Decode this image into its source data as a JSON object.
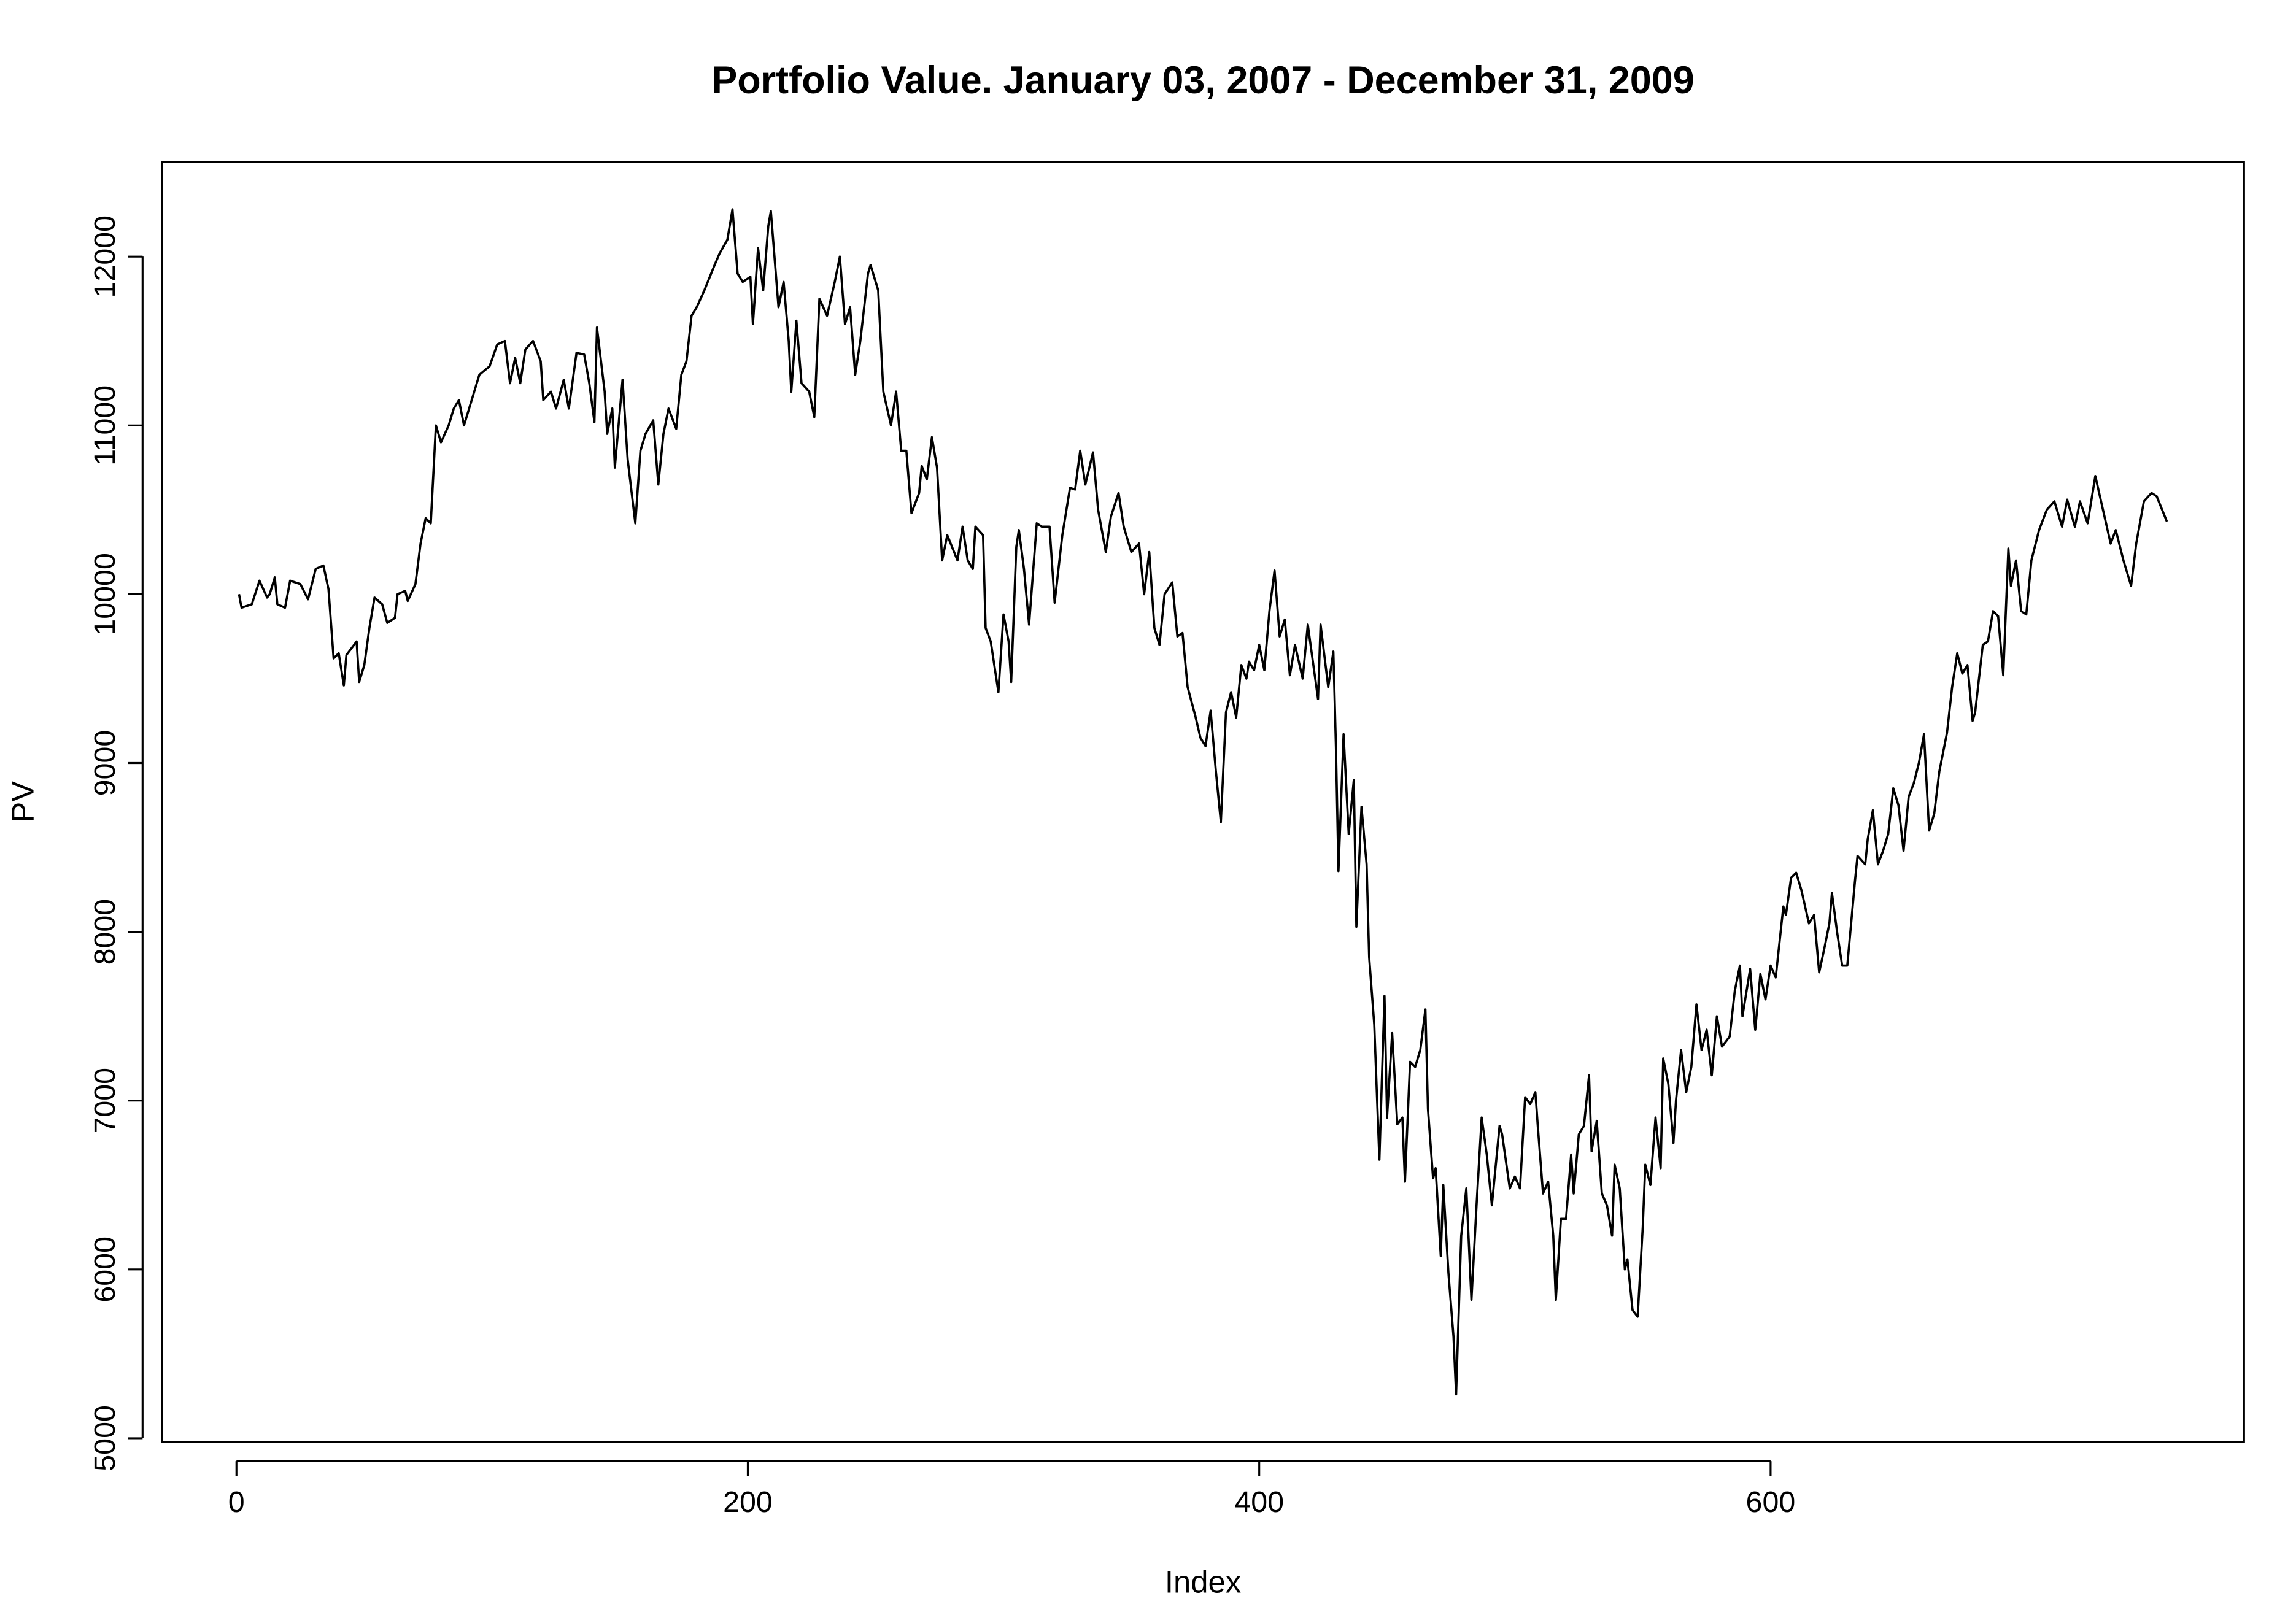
{
  "chart_data": {
    "type": "line",
    "title": "Portfolio Value. January 03, 2007 - December 31, 2009",
    "xlabel": "Index",
    "ylabel": "PV",
    "color": "#000000",
    "x": [
      1,
      2,
      6,
      9,
      12,
      13,
      15,
      16,
      19,
      21,
      25,
      28,
      31,
      34,
      36,
      38,
      40,
      42,
      43,
      47,
      48,
      50,
      52,
      54,
      57,
      59,
      62,
      63,
      66,
      67,
      70,
      72,
      74,
      76,
      78,
      80,
      83,
      85,
      87,
      89,
      92,
      95,
      99,
      102,
      105,
      107,
      109,
      111,
      113,
      116,
      119,
      120,
      123,
      125,
      128,
      130,
      133,
      136,
      138,
      140,
      141,
      144,
      145,
      147,
      148,
      151,
      153,
      156,
      158,
      160,
      163,
      165,
      167,
      169,
      172,
      174,
      176,
      178,
      180,
      183,
      187,
      189,
      192,
      194,
      196,
      198,
      201,
      202,
      204,
      206,
      208,
      209,
      212,
      214,
      216,
      217,
      219,
      221,
      224,
      226,
      228,
      231,
      234,
      236,
      238,
      240,
      242,
      244,
      247,
      248,
      251,
      253,
      256,
      258,
      260,
      262,
      264,
      267,
      268,
      270,
      272,
      274,
      276,
      278,
      282,
      284,
      286,
      288,
      289,
      292,
      293,
      295,
      297,
      298,
      300,
      302,
      303,
      305,
      306,
      308,
      310,
      313,
      315,
      318,
      320,
      323,
      326,
      328,
      330,
      332,
      335,
      337,
      340,
      342,
      345,
      347,
      350,
      353,
      355,
      357,
      359,
      361,
      363,
      366,
      368,
      370,
      372,
      375,
      377,
      379,
      381,
      383,
      385,
      387,
      389,
      391,
      393,
      395,
      396,
      398,
      400,
      402,
      404,
      406,
      408,
      410,
      412,
      414,
      417,
      419,
      421,
      423,
      424,
      427,
      429,
      430,
      431,
      433,
      435,
      437,
      438,
      440,
      442,
      443,
      445,
      447,
      449,
      450,
      452,
      454,
      456,
      457,
      459,
      461,
      463,
      465,
      466,
      468,
      469,
      471,
      472,
      474,
      476,
      477,
      479,
      481,
      483,
      485,
      487,
      489,
      491,
      494,
      495,
      498,
      500,
      502,
      504,
      506,
      508,
      509,
      511,
      513,
      515,
      516,
      518,
      520,
      522,
      523,
      525,
      527,
      529,
      530,
      532,
      534,
      536,
      538,
      539,
      541,
      543,
      544,
      546,
      548,
      550,
      551,
      553,
      555,
      557,
      558,
      560,
      562,
      563,
      565,
      567,
      569,
      571,
      573,
      575,
      577,
      579,
      581,
      584,
      586,
      588,
      589,
      592,
      594,
      596,
      598,
      600,
      602,
      605,
      606,
      608,
      610,
      612,
      615,
      617,
      619,
      621,
      623,
      624,
      626,
      628,
      630,
      633,
      634,
      637,
      638,
      640,
      642,
      644,
      646,
      648,
      650,
      652,
      654,
      656,
      658,
      660,
      662,
      664,
      666,
      669,
      671,
      673,
      675,
      677,
      679,
      680,
      683,
      685,
      687,
      689,
      691,
      693,
      694,
      696,
      698,
      700,
      702,
      705,
      708,
      711,
      714,
      716,
      719,
      721,
      724,
      727,
      730,
      733,
      735,
      738,
      741,
      743,
      746,
      749,
      751,
      755
    ],
    "values": [
      10000,
      9920,
      9940,
      10080,
      9980,
      10000,
      10100,
      9940,
      9920,
      10080,
      10060,
      9970,
      10150,
      10170,
      10030,
      9620,
      9650,
      9460,
      9640,
      9720,
      9480,
      9580,
      9800,
      9980,
      9940,
      9830,
      9860,
      10000,
      10020,
      9960,
      10060,
      10300,
      10450,
      10420,
      11000,
      10900,
      11000,
      11100,
      11150,
      11000,
      11150,
      11300,
      11350,
      11480,
      11500,
      11250,
      11400,
      11250,
      11450,
      11500,
      11380,
      11150,
      11200,
      11100,
      11270,
      11100,
      11430,
      11420,
      11250,
      11020,
      11580,
      11200,
      10950,
      11100,
      10750,
      11270,
      10800,
      10420,
      10850,
      10950,
      11030,
      10650,
      10950,
      11100,
      10980,
      11300,
      11380,
      11650,
      11700,
      11800,
      11950,
      12020,
      12100,
      12280,
      11900,
      11850,
      11880,
      11600,
      12050,
      11800,
      12180,
      12270,
      11700,
      11850,
      11500,
      11200,
      11620,
      11250,
      11200,
      11050,
      11750,
      11650,
      11850,
      12000,
      11600,
      11700,
      11300,
      11500,
      11900,
      11950,
      11800,
      11200,
      11000,
      11200,
      10850,
      10850,
      10480,
      10600,
      10760,
      10680,
      10930,
      10750,
      10200,
      10350,
      10200,
      10400,
      10200,
      10150,
      10400,
      10350,
      9800,
      9720,
      9520,
      9420,
      9880,
      9720,
      9480,
      10280,
      10380,
      10150,
      9820,
      10420,
      10400,
      10400,
      9950,
      10350,
      10630,
      10620,
      10850,
      10650,
      10840,
      10500,
      10250,
      10460,
      10600,
      10400,
      10250,
      10300,
      10000,
      10250,
      9800,
      9700,
      10000,
      10070,
      9750,
      9770,
      9450,
      9280,
      9150,
      9100,
      9310,
      8960,
      8650,
      9300,
      9420,
      9270,
      9580,
      9500,
      9600,
      9550,
      9700,
      9550,
      9900,
      10140,
      9750,
      9850,
      9520,
      9700,
      9500,
      9820,
      9600,
      9380,
      9820,
      9450,
      9660,
      9100,
      8360,
      9170,
      8580,
      8900,
      8030,
      8740,
      8400,
      7850,
      7450,
      6650,
      7620,
      6900,
      7400,
      6860,
      6900,
      6520,
      7230,
      7200,
      7300,
      7540,
      6950,
      6540,
      6600,
      6080,
      6500,
      5980,
      5600,
      5260,
      6200,
      6480,
      5820,
      6380,
      6900,
      6680,
      6380,
      6850,
      6800,
      6480,
      6550,
      6480,
      7020,
      6980,
      7050,
      6840,
      6450,
      6520,
      6200,
      5820,
      6300,
      6300,
      6680,
      6450,
      6800,
      6850,
      7150,
      6700,
      6880,
      6450,
      6380,
      6200,
      6620,
      6480,
      6000,
      6060,
      5760,
      5720,
      6250,
      6620,
      6500,
      6900,
      6600,
      7250,
      7100,
      6750,
      7000,
      7300,
      7050,
      7200,
      7570,
      7300,
      7420,
      7150,
      7500,
      7320,
      7380,
      7650,
      7800,
      7500,
      7780,
      7420,
      7750,
      7600,
      7800,
      7730,
      8150,
      8100,
      8320,
      8350,
      8250,
      8050,
      8100,
      7760,
      7900,
      8050,
      8230,
      8000,
      7800,
      7800,
      8300,
      8450,
      8400,
      8550,
      8720,
      8400,
      8480,
      8580,
      8850,
      8750,
      8480,
      8800,
      8880,
      9000,
      9170,
      8600,
      8700,
      8950,
      9180,
      9450,
      9650,
      9530,
      9580,
      9250,
      9300,
      9700,
      9720,
      9900,
      9870,
      9520,
      10270,
      10050,
      10200,
      9900,
      9880,
      10200,
      10380,
      10500,
      10550,
      10400,
      10560,
      10400,
      10550,
      10420,
      10700,
      10500,
      10300,
      10380,
      10200,
      10050,
      10300,
      10550,
      10600,
      10580,
      10430
    ],
    "xlim": [
      -29.16,
      785.16
    ],
    "ylim": [
      4979,
      12561
    ],
    "xticks": [
      0,
      200,
      400,
      600
    ],
    "yticks": [
      5000,
      6000,
      7000,
      8000,
      9000,
      10000,
      11000,
      12000
    ]
  }
}
